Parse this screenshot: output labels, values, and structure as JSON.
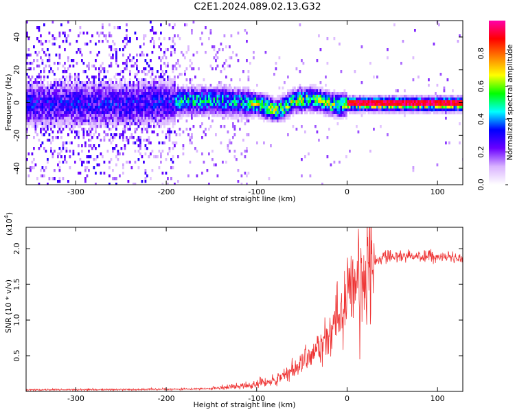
{
  "title": "C2E1.2024.089.02.13.G32",
  "chart_data": [
    {
      "type": "heatmap",
      "xlabel": "Height of straight line (km)",
      "ylabel": "Frequency (Hz)",
      "xlim": [
        -355,
        128
      ],
      "ylim": [
        -50,
        50
      ],
      "xticks": [
        -300,
        -200,
        -100,
        0,
        100
      ],
      "yticks": [
        -40,
        -20,
        0,
        20,
        40
      ],
      "colorbar": {
        "label": "Normalized spectral amplitude",
        "range": [
          0.0,
          1.0
        ],
        "ticks": [
          "0.0",
          "0.2",
          "0.4",
          "0.6",
          "0.8"
        ],
        "tick_values": [
          0.0,
          0.2,
          0.4,
          0.6,
          0.8
        ],
        "colors": [
          "#ffffff",
          "#d9b3ff",
          "#6a00ff",
          "#0000ff",
          "#00ffff",
          "#00ff00",
          "#ffff00",
          "#ff8000",
          "#ff0000",
          "#ff00aa"
        ]
      },
      "center_line": {
        "x": [
          -355,
          -300,
          -250,
          -200,
          -180,
          -150,
          -120,
          -100,
          -90,
          -80,
          -70,
          -60,
          -40,
          -30,
          -20,
          -10,
          0,
          10,
          50,
          100,
          128
        ],
        "y": [
          0,
          0,
          0,
          1,
          2,
          2,
          1,
          0,
          -2,
          -4,
          -2,
          2,
          3,
          2,
          0,
          -1,
          0,
          0,
          0,
          0,
          0
        ]
      }
    },
    {
      "type": "line",
      "xlabel": "Height of straight line (km)",
      "ylabel": "SNR (10 * v/v)",
      "y_multiplier": "(x10⁴)",
      "y_multiplier_base": "(x10",
      "y_multiplier_exp": "4",
      "y_multiplier_close": ")",
      "xlim": [
        -355,
        128
      ],
      "ylim": [
        0,
        2.3
      ],
      "xticks": [
        -300,
        -200,
        -100,
        0,
        100
      ],
      "yticks": [
        "0.5",
        "1.0",
        "1.5",
        "2.0"
      ],
      "ytick_values": [
        0.5,
        1.0,
        1.5,
        2.0
      ],
      "color": "#ee3333",
      "trend": {
        "x": [
          -355,
          -200,
          -150,
          -120,
          -100,
          -80,
          -60,
          -40,
          -20,
          -10,
          0,
          10,
          20,
          30,
          40,
          60,
          80,
          100,
          128
        ],
        "y": [
          0.02,
          0.03,
          0.04,
          0.07,
          0.1,
          0.16,
          0.3,
          0.5,
          0.78,
          1.0,
          1.3,
          1.55,
          1.72,
          1.82,
          1.88,
          1.9,
          1.9,
          1.88,
          1.87
        ]
      },
      "spikes": [
        {
          "x": 13,
          "y": 2.12
        },
        {
          "x": 14,
          "y": 0.45
        },
        {
          "x": 5,
          "y": 1.05
        }
      ]
    }
  ]
}
